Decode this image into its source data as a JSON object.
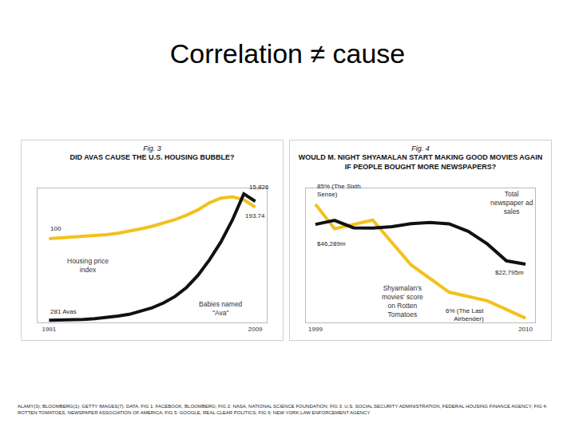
{
  "title": "Correlation ≠ cause",
  "chart_data": [
    {
      "type": "line",
      "subtitle": "Fig. 3",
      "title": "DID AVAS CAUSE THE U.S. HOUSING BUBBLE?",
      "xlim": [
        1990,
        2010
      ],
      "xticks": [
        1991,
        2009
      ],
      "ylim": [
        -150,
        250
      ],
      "y2lim": [
        0,
        16500
      ],
      "grid": false,
      "tick_labels": "x",
      "series": [
        {
          "name": "Housing price index",
          "color": "#f3c11b",
          "x": [
            1991,
            1992,
            1993,
            1994,
            1995,
            1996,
            1997,
            1998,
            1999,
            2000,
            2001,
            2002,
            2003,
            2004,
            2005,
            2006,
            2007,
            2008,
            2009
          ],
          "values": [
            100,
            102,
            104,
            107,
            109,
            112,
            116,
            122,
            129,
            137,
            147,
            157,
            170,
            186,
            207,
            221,
            225,
            216,
            193.74
          ],
          "point_labels": [
            {
              "x": 1991,
              "label": "100"
            },
            {
              "x": 2009,
              "label": "193.74"
            }
          ]
        },
        {
          "name": "Babies named \"Ava\"",
          "color": "#111111",
          "axis": "y2",
          "x": [
            1991,
            1992,
            1993,
            1994,
            1995,
            1996,
            1997,
            1998,
            1999,
            2000,
            2001,
            2002,
            2003,
            2004,
            2005,
            2006,
            2007,
            2008,
            2009
          ],
          "values": [
            281,
            290,
            320,
            380,
            470,
            600,
            780,
            1000,
            1350,
            1800,
            2400,
            3200,
            4300,
            5800,
            7700,
            9900,
            12600,
            15826,
            14900
          ],
          "point_labels": [
            {
              "x": 1991,
              "label": "281 Avas"
            },
            {
              "x": 2008,
              "label": "15,826"
            }
          ]
        }
      ]
    },
    {
      "type": "line",
      "subtitle": "Fig. 4",
      "title": "WOULD M. NIGHT SHYAMALAN START MAKING GOOD MOVIES AGAIN IF PEOPLE BOUGHT MORE NEWSPAPERS?",
      "xlim": [
        1998.5,
        2010.5
      ],
      "xticks": [
        1999,
        2010
      ],
      "ylim": [
        3,
        96
      ],
      "y2lim": [
        -11500,
        67500
      ],
      "grid": false,
      "tick_labels": "x",
      "series": [
        {
          "name": "Shyamalan's movies' score on Rotten Tomatoes",
          "color": "#f3c11b",
          "x": [
            1999,
            2000,
            2002,
            2004,
            2006,
            2008,
            2010
          ],
          "values": [
            85,
            68,
            74,
            43,
            24,
            18,
            6
          ],
          "point_labels": [
            {
              "x": 1999,
              "label": "85% (The Sixth Sense)"
            },
            {
              "x": 2010,
              "label": "6% (The Last Airbender)"
            }
          ]
        },
        {
          "name": "Total newspaper ad sales",
          "color": "#111111",
          "axis": "y2",
          "x": [
            1999,
            2000,
            2001,
            2002,
            2003,
            2004,
            2005,
            2006,
            2007,
            2008,
            2009,
            2010
          ],
          "values": [
            46289,
            48670,
            44255,
            44102,
            44939,
            46703,
            47408,
            46611,
            42209,
            34740,
            24821,
            22795
          ],
          "point_labels": [
            {
              "x": 1999,
              "label": "$46,289m"
            },
            {
              "x": 2010,
              "label": "$22,795m"
            }
          ]
        }
      ]
    }
  ],
  "footer": "ALAMY(3); BLOOMBERG(1); GETTY IMAGES(7). DATA: FIG 1: FACEBOOK, BLOOMBERG; FIG 2: NASA, NATIONAL SCIENCE FOUNDATION; FIG 3: U.S. SOCIAL SECURITY ADMINISTRATION, FEDERAL HOUSING FINANCE AGENCY; FIG 4: ROTTEN TOMATOES, NEWSPAPER ASSOCIATION OF AMERICA; FIG 5: GOOGLE, REAL CLEAR POLITICS; FIG 6: NEW YORK LAW ENFORCEMENT AGENCY"
}
